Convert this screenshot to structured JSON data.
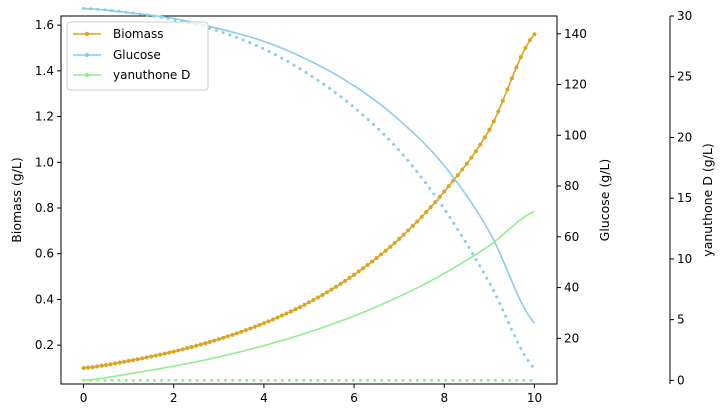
{
  "chart_data": {
    "type": "line",
    "x": [
      0,
      1,
      2,
      3,
      4,
      5,
      6,
      7,
      8,
      9,
      10
    ],
    "xlim": [
      -0.5,
      10.5
    ],
    "xticks": [
      0,
      2,
      4,
      6,
      8,
      10
    ],
    "xtick_labels": [
      "0",
      "2",
      "4",
      "6",
      "8",
      "10"
    ],
    "axes": [
      {
        "id": "left",
        "label": "Biomass (g/L)",
        "ylim": [
          0.03,
          1.64
        ],
        "ticks": [
          0.2,
          0.4,
          0.6,
          0.8,
          1.0,
          1.2,
          1.4,
          1.6
        ],
        "tick_labels": [
          "0.2",
          "0.4",
          "0.6",
          "0.8",
          "1.0",
          "1.2",
          "1.4",
          "1.6"
        ]
      },
      {
        "id": "glucose",
        "label": "Glucose (g/L)",
        "ylim": [
          2,
          147
        ],
        "ticks": [
          20,
          40,
          60,
          80,
          100,
          120,
          140
        ],
        "tick_labels": [
          "20",
          "40",
          "60",
          "80",
          "100",
          "120",
          "140"
        ]
      },
      {
        "id": "product",
        "label": "yanuthone D (g/L)",
        "ylim": [
          -0.3,
          30
        ],
        "ticks": [
          0,
          5,
          10,
          15,
          20,
          25,
          30
        ],
        "tick_labels": [
          "0",
          "5",
          "10",
          "15",
          "20",
          "25",
          "30"
        ]
      }
    ],
    "series": [
      {
        "name": "Biomass",
        "axis": "left",
        "color": "#DAA520",
        "style": "solid-marker",
        "legend": true,
        "values": [
          0.1,
          0.131,
          0.172,
          0.226,
          0.296,
          0.387,
          0.508,
          0.665,
          0.872,
          1.142,
          1.56
        ]
      },
      {
        "name": "Glucose",
        "axis": "glucose",
        "color": "#87CEEB",
        "style": "solid",
        "legend": true,
        "values": [
          150,
          148.3,
          146,
          142,
          137,
          129.5,
          119.5,
          106,
          88,
          62,
          26
        ]
      },
      {
        "name": "",
        "axis": "glucose",
        "color": "#87CEEB",
        "style": "dotted",
        "legend": false,
        "values": [
          150,
          148.4,
          145.5,
          141,
          134,
          124,
          111,
          94,
          71,
          42,
          8
        ]
      },
      {
        "name": "yanuthone D",
        "axis": "product",
        "color": "#90EE90",
        "style": "solid",
        "legend": true,
        "values": [
          0,
          0.53,
          1.17,
          1.93,
          2.86,
          3.97,
          5.3,
          6.9,
          8.8,
          11.1,
          13.9
        ]
      },
      {
        "name": "",
        "axis": "product",
        "color": "#90EE90",
        "style": "dotted",
        "legend": false,
        "values": [
          0,
          0,
          0,
          0,
          0,
          0,
          0,
          0,
          0,
          0,
          0
        ]
      }
    ],
    "legend_position": "upper-left",
    "grid": false
  }
}
